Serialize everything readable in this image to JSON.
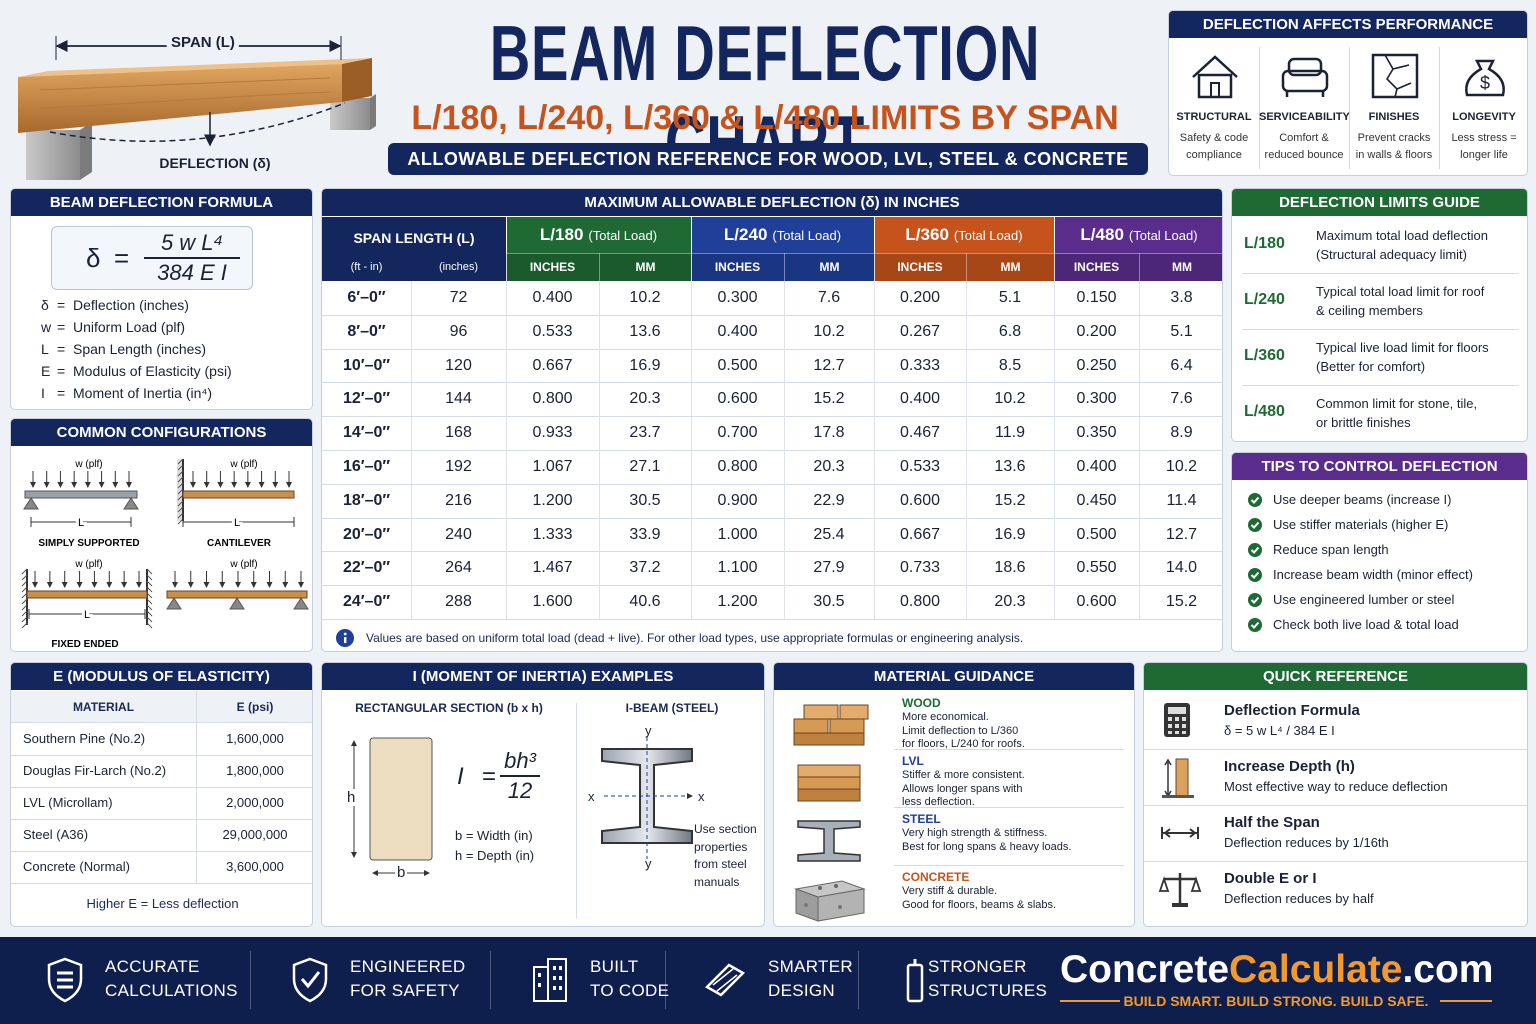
{
  "header": {
    "title": "BEAM DEFLECTION CHART",
    "subtitle": "L/180, L/240, L/360 & L/480 LIMITS BY SPAN",
    "banner": "ALLOWABLE DEFLECTION REFERENCE FOR WOOD, LVL, STEEL & CONCRETE"
  },
  "illustration": {
    "span_label": "SPAN (L)",
    "deflection_label": "DEFLECTION (δ)"
  },
  "performance": {
    "title": "DEFLECTION AFFECTS PERFORMANCE",
    "items": [
      {
        "title": "STRUCTURAL",
        "lines": [
          "Safety & code",
          "compliance"
        ]
      },
      {
        "title": "SERVICEABILITY",
        "lines": [
          "Comfort &",
          "reduced bounce"
        ]
      },
      {
        "title": "FINISHES",
        "lines": [
          "Prevent cracks",
          "in walls & floors"
        ]
      },
      {
        "title": "LONGEVITY",
        "lines": [
          "Less stress =",
          "longer life"
        ]
      }
    ]
  },
  "formula": {
    "title": "BEAM DEFLECTION FORMULA",
    "lhs": "δ",
    "equals": "=",
    "numerator": "5 w L⁴",
    "denominator": "384 E I",
    "legend": [
      {
        "symbol": "δ",
        "desc": "Deflection (inches)"
      },
      {
        "symbol": "w",
        "desc": "Uniform Load (plf)"
      },
      {
        "symbol": "L",
        "desc": "Span Length (inches)"
      },
      {
        "symbol": "E",
        "desc": "Modulus of Elasticity (psi)"
      },
      {
        "symbol": "I",
        "desc": "Moment of Inertia (in⁴)"
      }
    ]
  },
  "configurations": {
    "title": "COMMON CONFIGURATIONS",
    "load_label": "w (plf)",
    "span_label": "L",
    "items": [
      "SIMPLY SUPPORTED",
      "CANTILEVER",
      "FIXED ENDED"
    ]
  },
  "table": {
    "title": "MAXIMUM ALLOWABLE DEFLECTION (δ) IN INCHES",
    "span_header": "SPAN LENGTH (L)",
    "span_subheaders": [
      "(ft - in)",
      "(inches)"
    ],
    "limits": [
      {
        "name": "L/180",
        "note": "(Total Load)",
        "color": "#1f6a34"
      },
      {
        "name": "L/240",
        "note": "(Total Load)",
        "color": "#1f3f99"
      },
      {
        "name": "L/360",
        "note": "(Total Load)",
        "color": "#c5531b"
      },
      {
        "name": "L/480",
        "note": "(Total Load)",
        "color": "#5a2d8c"
      }
    ],
    "unit_headers": [
      "INCHES",
      "MM"
    ],
    "rows": [
      [
        "6′–0″",
        "72",
        "0.400",
        "10.2",
        "0.300",
        "7.6",
        "0.200",
        "5.1",
        "0.150",
        "3.8"
      ],
      [
        "8′–0″",
        "96",
        "0.533",
        "13.6",
        "0.400",
        "10.2",
        "0.267",
        "6.8",
        "0.200",
        "5.1"
      ],
      [
        "10′–0″",
        "120",
        "0.667",
        "16.9",
        "0.500",
        "12.7",
        "0.333",
        "8.5",
        "0.250",
        "6.4"
      ],
      [
        "12′–0″",
        "144",
        "0.800",
        "20.3",
        "0.600",
        "15.2",
        "0.400",
        "10.2",
        "0.300",
        "7.6"
      ],
      [
        "14′–0″",
        "168",
        "0.933",
        "23.7",
        "0.700",
        "17.8",
        "0.467",
        "11.9",
        "0.350",
        "8.9"
      ],
      [
        "16′–0″",
        "192",
        "1.067",
        "27.1",
        "0.800",
        "20.3",
        "0.533",
        "13.6",
        "0.400",
        "10.2"
      ],
      [
        "18′–0″",
        "216",
        "1.200",
        "30.5",
        "0.900",
        "22.9",
        "0.600",
        "15.2",
        "0.450",
        "11.4"
      ],
      [
        "20′–0″",
        "240",
        "1.333",
        "33.9",
        "1.000",
        "25.4",
        "0.667",
        "16.9",
        "0.500",
        "12.7"
      ],
      [
        "22′–0″",
        "264",
        "1.467",
        "37.2",
        "1.100",
        "27.9",
        "0.733",
        "18.6",
        "0.550",
        "14.0"
      ],
      [
        "24′–0″",
        "288",
        "1.600",
        "40.6",
        "1.200",
        "30.5",
        "0.800",
        "20.3",
        "0.600",
        "15.2"
      ]
    ],
    "note": "Values are based on uniform total load (dead + live). For other load types, use appropriate formulas or engineering analysis."
  },
  "limits_guide": {
    "title": "DEFLECTION LIMITS GUIDE",
    "items": [
      {
        "limit": "L/180",
        "lines": [
          "Maximum total load deflection",
          "(Structural adequacy limit)"
        ]
      },
      {
        "limit": "L/240",
        "lines": [
          "Typical total load limit for roof",
          "& ceiling members"
        ]
      },
      {
        "limit": "L/360",
        "lines": [
          "Typical live load limit for floors",
          "(Better for comfort)"
        ]
      },
      {
        "limit": "L/480",
        "lines": [
          "Common limit for stone, tile,",
          "or brittle finishes"
        ]
      }
    ]
  },
  "tips": {
    "title": "TIPS TO CONTROL DEFLECTION",
    "items": [
      "Use deeper beams (increase I)",
      "Use stiffer materials (higher E)",
      "Reduce span length",
      "Increase beam width (minor effect)",
      "Use engineered lumber or steel",
      "Check both live load & total load"
    ]
  },
  "modulus": {
    "title": "E (MODULUS OF ELASTICITY)",
    "headers": [
      "MATERIAL",
      "E (psi)"
    ],
    "rows": [
      [
        "Southern Pine (No.2)",
        "1,600,000"
      ],
      [
        "Douglas Fir-Larch (No.2)",
        "1,800,000"
      ],
      [
        "LVL (Microllam)",
        "2,000,000"
      ],
      [
        "Steel (A36)",
        "29,000,000"
      ],
      [
        "Concrete (Normal)",
        "3,600,000"
      ]
    ],
    "note": "Higher E = Less deflection"
  },
  "inertia": {
    "title": "I (MOMENT OF INERTIA) EXAMPLES",
    "rect_title": "RECTANGULAR SECTION (b x h)",
    "ibeam_title": "I-BEAM (STEEL)",
    "lhs": "I",
    "equals": "=",
    "numerator": "bh³",
    "denominator": "12",
    "h_label": "h",
    "b_label": "b",
    "definitions": [
      "b = Width (in)",
      "h = Depth (in)"
    ],
    "x_label": "x",
    "y_label": "y",
    "note_lines": [
      "Use section",
      "properties",
      "from steel",
      "manuals"
    ]
  },
  "materials": {
    "title": "MATERIAL GUIDANCE",
    "items": [
      {
        "name": "WOOD",
        "color": "#1f6a34",
        "lines": [
          "More economical.",
          "Limit deflection to L/360",
          "for floors, L/240 for roofs."
        ]
      },
      {
        "name": "LVL",
        "color": "#1f3f99",
        "lines": [
          "Stiffer & more consistent.",
          "Allows longer spans with",
          "less deflection."
        ]
      },
      {
        "name": "STEEL",
        "color": "#1f3f99",
        "lines": [
          "Very high strength & stiffness.",
          "Best for long spans & heavy loads."
        ]
      },
      {
        "name": "CONCRETE",
        "color": "#c5531b",
        "lines": [
          "Very stiff & durable.",
          "Good for floors, beams & slabs."
        ]
      }
    ]
  },
  "quick_reference": {
    "title": "QUICK REFERENCE",
    "items": [
      {
        "title": "Deflection Formula",
        "text": "δ = 5 w L⁴ / 384 E I"
      },
      {
        "title": "Increase Depth (h)",
        "text": "Most effective way to reduce deflection"
      },
      {
        "title": "Half the Span",
        "text": "Deflection reduces by 1/16th"
      },
      {
        "title": "Double E or I",
        "text": "Deflection reduces by half"
      }
    ]
  },
  "footer": {
    "badges": [
      [
        "ACCURATE",
        "CALCULATIONS"
      ],
      [
        "ENGINEERED",
        "FOR SAFETY"
      ],
      [
        "BUILT",
        "TO CODE"
      ],
      [
        "SMARTER",
        "DESIGN"
      ],
      [
        "STRONGER",
        "STRUCTURES"
      ]
    ],
    "brand": [
      "Concrete",
      "Calculate",
      ".com"
    ],
    "tagline": "BUILD SMART. BUILD STRONG. BUILD SAFE."
  }
}
